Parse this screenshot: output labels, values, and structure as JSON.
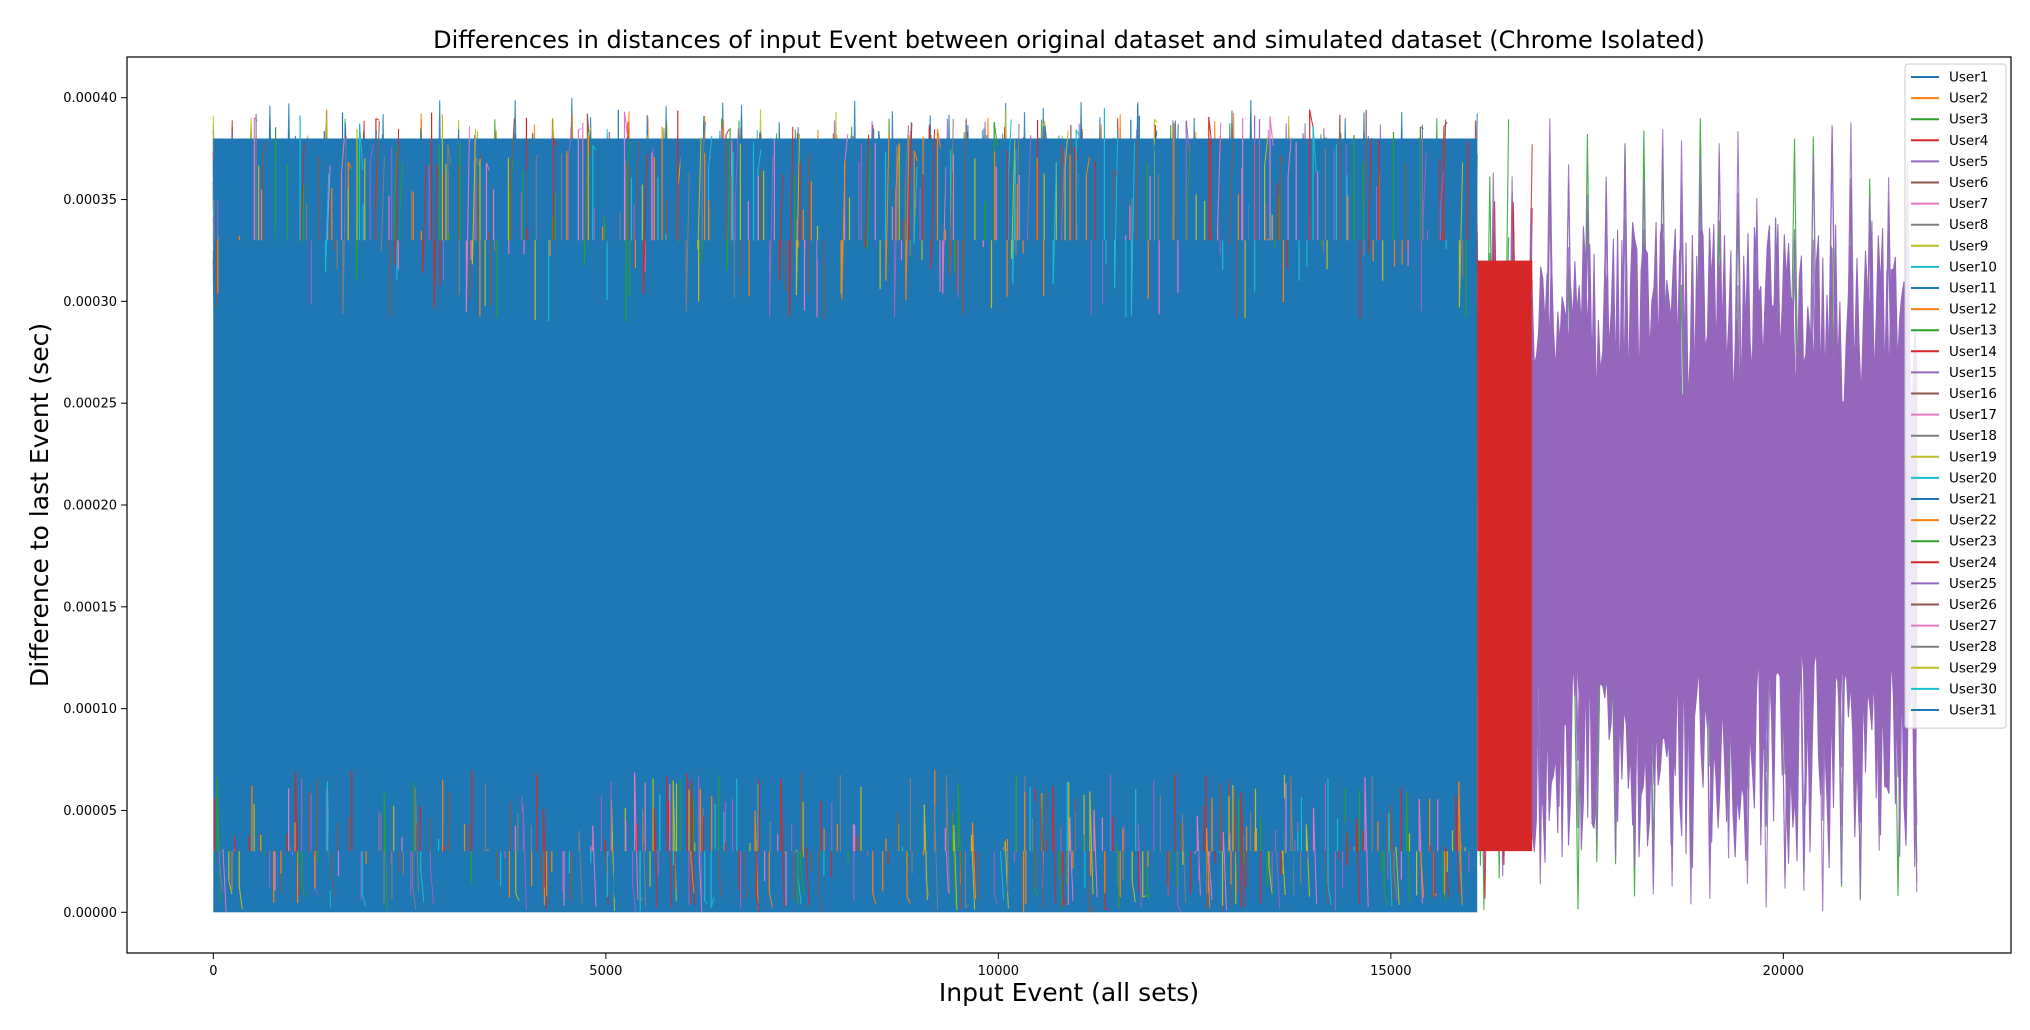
{
  "chart_data": {
    "type": "line",
    "title": "Differences in distances of input Event between original dataset and simulated dataset (Chrome Isolated)",
    "xlabel": "Input Event (all sets)",
    "ylabel": "Difference to last Event (sec)",
    "xlim": [
      -1100,
      22900
    ],
    "ylim": [
      -2e-05,
      0.00042
    ],
    "xticks": [
      0,
      5000,
      10000,
      15000,
      20000
    ],
    "xtick_labels": [
      "0",
      "5000",
      "10000",
      "15000",
      "20000"
    ],
    "yticks": [
      0,
      5e-05,
      0.0001,
      0.00015,
      0.0002,
      0.00025,
      0.0003,
      0.00035,
      0.0004
    ],
    "ytick_labels": [
      "0.00000",
      "0.00005",
      "0.00010",
      "0.00015",
      "0.00020",
      "0.00025",
      "0.00030",
      "0.00035",
      "0.00040"
    ],
    "grid": false,
    "legend_position": "top-right",
    "series": [
      {
        "name": "User1",
        "color": "#1f77b4",
        "x_range": [
          0,
          16100
        ],
        "y_range": [
          0,
          0.0004
        ]
      },
      {
        "name": "User2",
        "color": "#ff7f0e",
        "x_range": [
          0,
          14200
        ],
        "y_range": [
          0,
          0.000395
        ]
      },
      {
        "name": "User3",
        "color": "#2ca02c",
        "x_range": [
          0,
          21700
        ],
        "y_range": [
          0,
          0.00039
        ]
      },
      {
        "name": "User4",
        "color": "#d62728",
        "x_range": [
          0,
          16800
        ],
        "y_range": [
          0,
          0.00039
        ]
      },
      {
        "name": "User5",
        "color": "#9467bd",
        "x_range": [
          0,
          21700
        ],
        "y_range": [
          0,
          0.00039
        ]
      },
      {
        "name": "User6",
        "color": "#8c564b",
        "x_range": [
          0,
          14000
        ],
        "y_range": [
          0,
          0.000385
        ]
      },
      {
        "name": "User7",
        "color": "#e377c2",
        "x_range": [
          0,
          15000
        ],
        "y_range": [
          0,
          0.000385
        ]
      },
      {
        "name": "User8",
        "color": "#7f7f7f",
        "x_range": [
          0,
          15200
        ],
        "y_range": [
          0,
          0.000385
        ]
      },
      {
        "name": "User9",
        "color": "#bcbd22",
        "x_range": [
          0,
          14300
        ],
        "y_range": [
          0,
          0.000395
        ]
      },
      {
        "name": "User10",
        "color": "#17becf",
        "x_range": [
          0,
          13500
        ],
        "y_range": [
          0,
          0.000385
        ]
      },
      {
        "name": "User11",
        "color": "#1f77b4",
        "x_range": [
          0,
          16100
        ],
        "y_range": [
          0,
          0.0004
        ]
      },
      {
        "name": "User12",
        "color": "#ff7f0e",
        "x_range": [
          0,
          14200
        ],
        "y_range": [
          0,
          0.000395
        ]
      },
      {
        "name": "User13",
        "color": "#2ca02c",
        "x_range": [
          0,
          16500
        ],
        "y_range": [
          0,
          0.00039
        ]
      },
      {
        "name": "User14",
        "color": "#d62728",
        "x_range": [
          0,
          16800
        ],
        "y_range": [
          0,
          0.00039
        ]
      },
      {
        "name": "User15",
        "color": "#9467bd",
        "x_range": [
          0,
          21700
        ],
        "y_range": [
          0,
          0.00039
        ]
      },
      {
        "name": "User16",
        "color": "#8c564b",
        "x_range": [
          0,
          14000
        ],
        "y_range": [
          0,
          0.000385
        ]
      },
      {
        "name": "User17",
        "color": "#e377c2",
        "x_range": [
          0,
          15000
        ],
        "y_range": [
          0,
          0.000385
        ]
      },
      {
        "name": "User18",
        "color": "#7f7f7f",
        "x_range": [
          0,
          15200
        ],
        "y_range": [
          0,
          0.000385
        ]
      },
      {
        "name": "User19",
        "color": "#bcbd22",
        "x_range": [
          0,
          14300
        ],
        "y_range": [
          0,
          0.000395
        ]
      },
      {
        "name": "User20",
        "color": "#17becf",
        "x_range": [
          0,
          13500
        ],
        "y_range": [
          0,
          0.000385
        ]
      },
      {
        "name": "User21",
        "color": "#1f77b4",
        "x_range": [
          0,
          16100
        ],
        "y_range": [
          0,
          0.0004
        ]
      },
      {
        "name": "User22",
        "color": "#ff7f0e",
        "x_range": [
          0,
          14200
        ],
        "y_range": [
          0,
          0.000395
        ]
      },
      {
        "name": "User23",
        "color": "#2ca02c",
        "x_range": [
          0,
          16500
        ],
        "y_range": [
          0,
          0.00039
        ]
      },
      {
        "name": "User24",
        "color": "#d62728",
        "x_range": [
          0,
          16800
        ],
        "y_range": [
          0,
          0.00039
        ]
      },
      {
        "name": "User25",
        "color": "#9467bd",
        "x_range": [
          0,
          21700
        ],
        "y_range": [
          0,
          0.00039
        ]
      },
      {
        "name": "User26",
        "color": "#8c564b",
        "x_range": [
          0,
          14000
        ],
        "y_range": [
          0,
          0.000385
        ]
      },
      {
        "name": "User27",
        "color": "#e377c2",
        "x_range": [
          0,
          15000
        ],
        "y_range": [
          0,
          0.000385
        ]
      },
      {
        "name": "User28",
        "color": "#7f7f7f",
        "x_range": [
          0,
          15200
        ],
        "y_range": [
          0,
          0.000385
        ]
      },
      {
        "name": "User29",
        "color": "#bcbd22",
        "x_range": [
          0,
          14300
        ],
        "y_range": [
          0,
          0.000395
        ]
      },
      {
        "name": "User30",
        "color": "#17becf",
        "x_range": [
          0,
          13500
        ],
        "y_range": [
          0,
          0.000385
        ]
      },
      {
        "name": "User31",
        "color": "#1f77b4",
        "x_range": [
          0,
          16100
        ],
        "y_range": [
          0,
          0.0004
        ]
      }
    ],
    "regions": [
      {
        "series": "User1",
        "x_range": [
          0,
          16100
        ],
        "y_range": [
          0.0,
          0.00038
        ]
      },
      {
        "series": "User4",
        "x_range": [
          16100,
          16800
        ],
        "y_range": [
          3e-05,
          0.00032
        ]
      },
      {
        "series": "User5",
        "x_range": [
          16800,
          21700
        ],
        "y_range": [
          2e-05,
          0.00034
        ]
      }
    ]
  }
}
